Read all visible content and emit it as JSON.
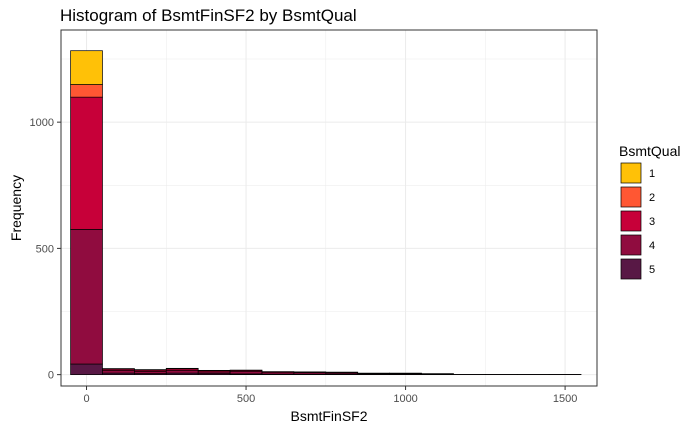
{
  "chart_data": {
    "type": "bar",
    "subtype": "stacked-histogram",
    "title": "Histogram of BsmtFinSF2 by BsmtQual",
    "xlabel": "BsmtFinSF2",
    "ylabel": "Frequency",
    "xlim": [
      -80,
      1600
    ],
    "ylim": [
      -45,
      1365
    ],
    "x_ticks": [
      0,
      500,
      1000,
      1500
    ],
    "y_ticks": [
      0,
      500,
      1000
    ],
    "bin_width": 100,
    "bins": [
      {
        "x0": -50,
        "x1": 50,
        "counts": [
          134,
          50,
          524,
          533,
          42
        ]
      },
      {
        "x0": 50,
        "x1": 150,
        "counts": [
          1,
          1,
          6,
          10,
          6
        ]
      },
      {
        "x0": 150,
        "x1": 250,
        "counts": [
          1,
          1,
          6,
          8,
          4
        ]
      },
      {
        "x0": 250,
        "x1": 350,
        "counts": [
          1,
          1,
          7,
          10,
          6
        ]
      },
      {
        "x0": 350,
        "x1": 450,
        "counts": [
          0,
          1,
          5,
          7,
          4
        ]
      },
      {
        "x0": 450,
        "x1": 550,
        "counts": [
          0,
          1,
          5,
          9,
          3
        ]
      },
      {
        "x0": 550,
        "x1": 650,
        "counts": [
          0,
          0,
          4,
          6,
          2
        ]
      },
      {
        "x0": 650,
        "x1": 750,
        "counts": [
          0,
          0,
          3,
          6,
          2
        ]
      },
      {
        "x0": 750,
        "x1": 850,
        "counts": [
          0,
          0,
          3,
          5,
          2
        ]
      },
      {
        "x0": 850,
        "x1": 950,
        "counts": [
          0,
          0,
          2,
          3,
          1
        ]
      },
      {
        "x0": 950,
        "x1": 1050,
        "counts": [
          0,
          0,
          2,
          3,
          1
        ]
      },
      {
        "x0": 1050,
        "x1": 1150,
        "counts": [
          0,
          0,
          1,
          2,
          1
        ]
      },
      {
        "x0": 1150,
        "x1": 1250,
        "counts": [
          0,
          0,
          0,
          1,
          0
        ]
      },
      {
        "x0": 1250,
        "x1": 1350,
        "counts": [
          0,
          0,
          0,
          1,
          0
        ]
      },
      {
        "x0": 1350,
        "x1": 1450,
        "counts": [
          0,
          0,
          0,
          1,
          0
        ]
      },
      {
        "x0": 1450,
        "x1": 1550,
        "counts": [
          0,
          0,
          0,
          1,
          0
        ]
      }
    ],
    "series": [
      {
        "name": "1",
        "color": "#FFC107"
      },
      {
        "name": "2",
        "color": "#FF5733"
      },
      {
        "name": "3",
        "color": "#C70039"
      },
      {
        "name": "4",
        "color": "#900C3F"
      },
      {
        "name": "5",
        "color": "#581845"
      }
    ],
    "legend": {
      "title": "BsmtQual",
      "position": "right"
    },
    "grid": true
  }
}
